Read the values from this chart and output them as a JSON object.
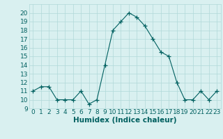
{
  "x": [
    0,
    1,
    2,
    3,
    4,
    5,
    6,
    7,
    8,
    9,
    10,
    11,
    12,
    13,
    14,
    15,
    16,
    17,
    18,
    19,
    20,
    21,
    22,
    23
  ],
  "y": [
    11,
    11.5,
    11.5,
    10,
    10,
    10,
    11,
    9.5,
    10,
    14,
    18,
    19,
    20,
    19.5,
    18.5,
    17,
    15.5,
    15,
    12,
    10,
    10,
    11,
    10,
    11
  ],
  "line_color": "#006060",
  "marker": "+",
  "bg_color": "#d9f0f0",
  "grid_color": "#b0d8d8",
  "xlabel": "Humidex (Indice chaleur)",
  "ylim": [
    9,
    21
  ],
  "xlim": [
    -0.5,
    23.5
  ],
  "yticks": [
    9,
    10,
    11,
    12,
    13,
    14,
    15,
    16,
    17,
    18,
    19,
    20
  ],
  "xticks": [
    0,
    1,
    2,
    3,
    4,
    5,
    6,
    7,
    8,
    9,
    10,
    11,
    12,
    13,
    14,
    15,
    16,
    17,
    18,
    19,
    20,
    21,
    22,
    23
  ],
  "tick_fontsize": 6.5,
  "label_fontsize": 7.5
}
